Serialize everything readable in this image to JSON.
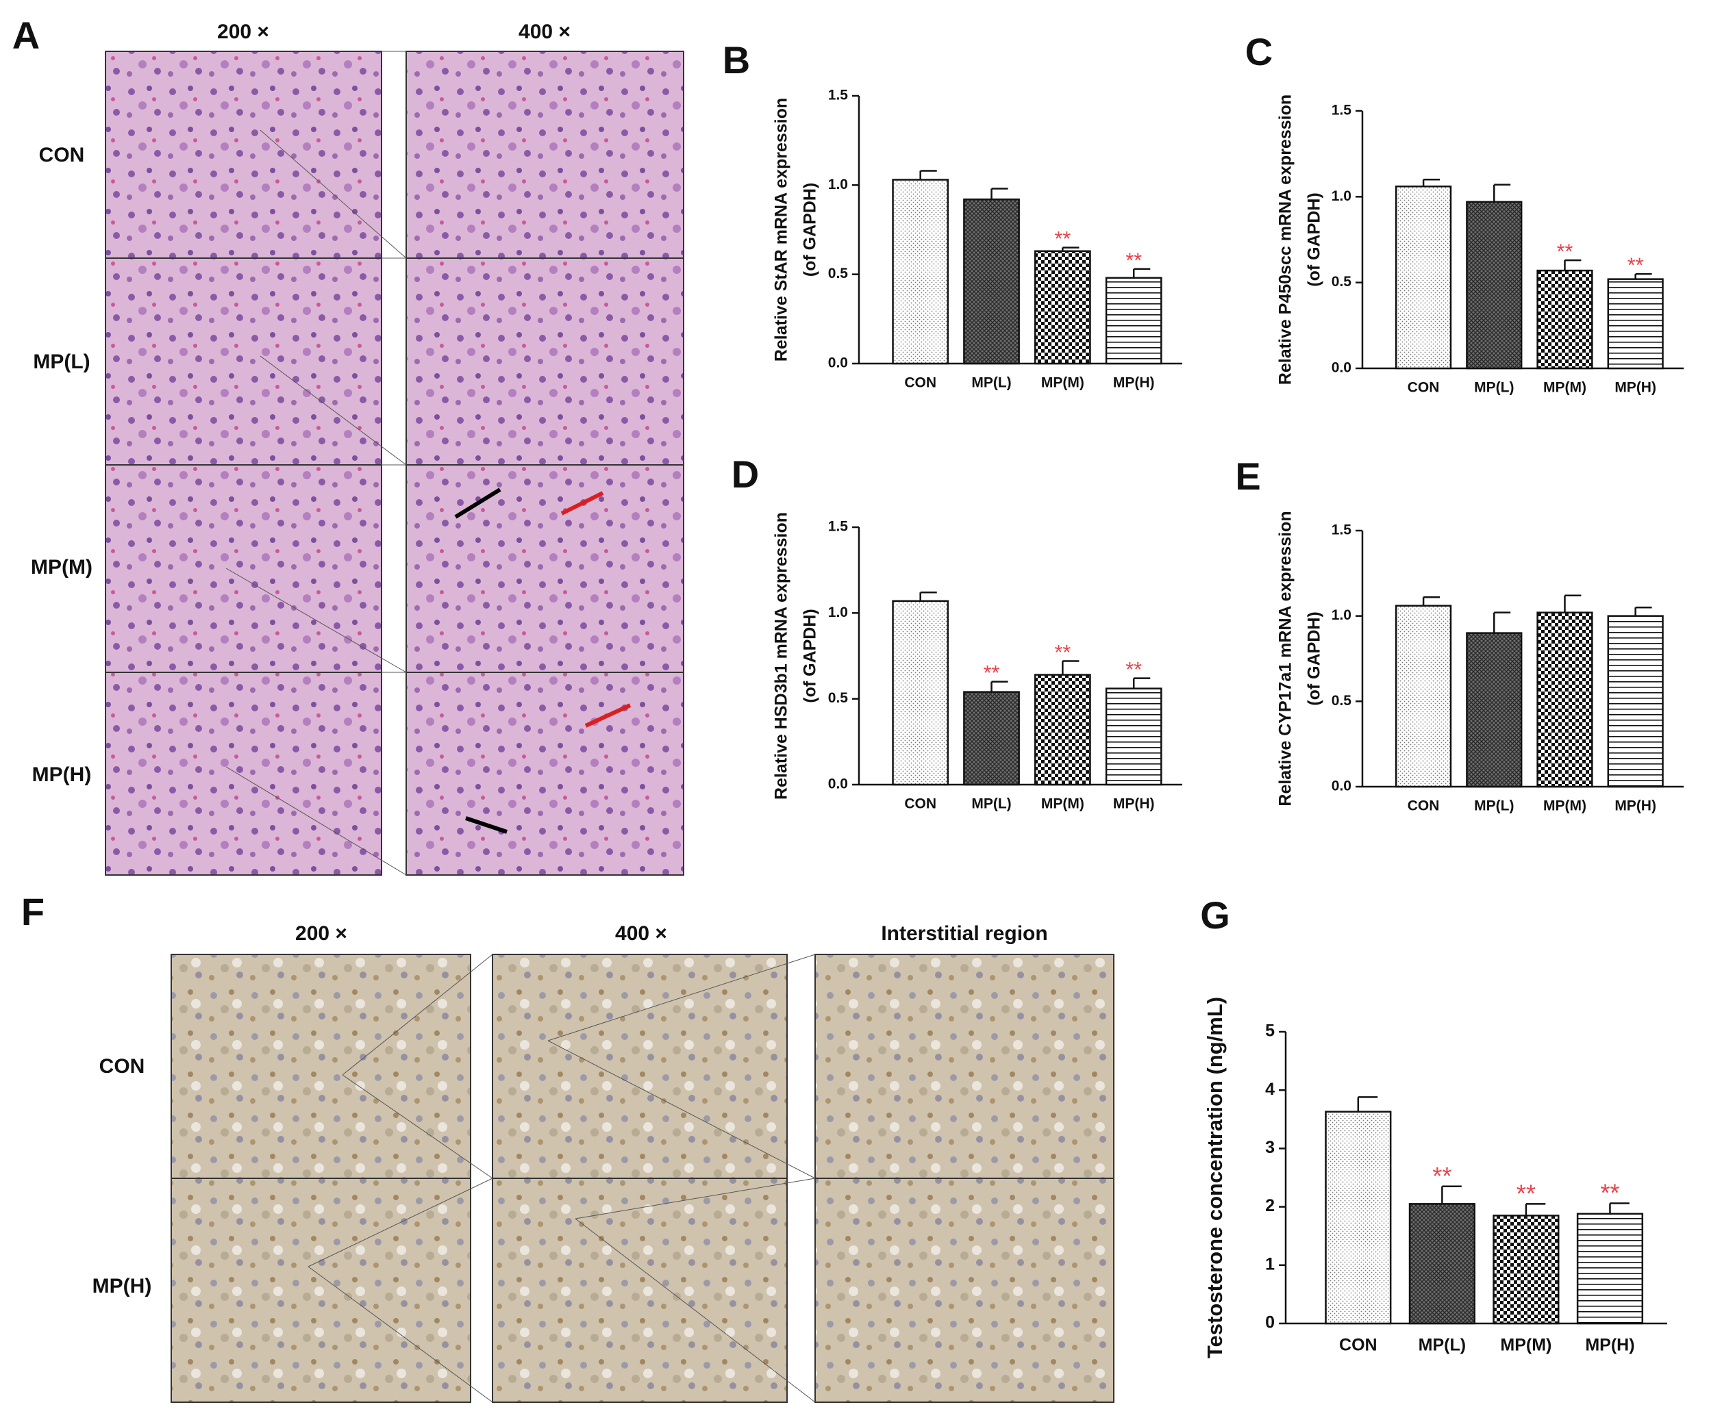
{
  "panel_a": {
    "label": "A",
    "columns": [
      "200 ×",
      "400 ×"
    ],
    "rows": [
      "CON",
      "MP(L)",
      "MP(M)",
      "MP(H)"
    ]
  },
  "panel_f": {
    "label": "F",
    "columns": [
      "200 ×",
      "400 ×",
      "Interstitial region"
    ],
    "rows": [
      "CON",
      "MP(H)"
    ]
  },
  "chart_data": [
    {
      "type": "bar",
      "panel_label": "B",
      "y_label": [
        "Relative StAR mRNA expression",
        "(of GAPDH)"
      ],
      "categories": [
        "CON",
        "MP(L)",
        "MP(M)",
        "MP(H)"
      ],
      "values": [
        1.03,
        0.92,
        0.63,
        0.48
      ],
      "errors": [
        0.05,
        0.06,
        0.02,
        0.05
      ],
      "annotations": [
        null,
        null,
        "**",
        "**"
      ],
      "annotation_color": "#e8434b",
      "ylim": [
        0,
        1.5
      ],
      "yticks": [
        {
          "value": 0,
          "label": "0.0"
        },
        0.5,
        {
          "value": 1,
          "label": "1.0"
        },
        1.5
      ]
    },
    {
      "type": "bar",
      "panel_label": "C",
      "y_label": [
        "Relative P450scc mRNA expression",
        "(of GAPDH)"
      ],
      "categories": [
        "CON",
        "MP(L)",
        "MP(M)",
        "MP(H)"
      ],
      "values": [
        1.06,
        0.97,
        0.57,
        0.52
      ],
      "errors": [
        0.04,
        0.1,
        0.06,
        0.03
      ],
      "annotations": [
        null,
        null,
        "**",
        "**"
      ],
      "annotation_color": "#e8434b",
      "ylim": [
        0,
        1.5
      ],
      "yticks": [
        {
          "value": 0,
          "label": "0.0"
        },
        0.5,
        {
          "value": 1,
          "label": "1.0"
        },
        1.5
      ]
    },
    {
      "type": "bar",
      "panel_label": "D",
      "y_label": [
        "Relative HSD3b1 mRNA expression",
        "(of GAPDH)"
      ],
      "categories": [
        "CON",
        "MP(L)",
        "MP(M)",
        "MP(H)"
      ],
      "values": [
        1.07,
        0.54,
        0.64,
        0.56
      ],
      "errors": [
        0.05,
        0.06,
        0.08,
        0.06
      ],
      "annotations": [
        null,
        "**",
        "**",
        "**"
      ],
      "annotation_color": "#e8434b",
      "ylim": [
        0,
        1.5
      ],
      "yticks": [
        {
          "value": 0,
          "label": "0.0"
        },
        0.5,
        {
          "value": 1,
          "label": "1.0"
        },
        1.5
      ]
    },
    {
      "type": "bar",
      "panel_label": "E",
      "y_label": [
        "Relative CYP17a1 mRNA expression",
        "(of GAPDH)"
      ],
      "categories": [
        "CON",
        "MP(L)",
        "MP(M)",
        "MP(H)"
      ],
      "values": [
        1.06,
        0.9,
        1.02,
        1.0
      ],
      "errors": [
        0.05,
        0.12,
        0.1,
        0.05
      ],
      "annotations": [
        null,
        null,
        null,
        null
      ],
      "annotation_color": "#e8434b",
      "ylim": [
        0,
        1.5
      ],
      "yticks": [
        {
          "value": 0,
          "label": "0.0"
        },
        0.5,
        {
          "value": 1,
          "label": "1.0"
        },
        1.5
      ]
    },
    {
      "type": "bar",
      "panel_label": "G",
      "y_label": [
        "Testosterone concentration (ng/mL)"
      ],
      "categories": [
        "CON",
        "MP(L)",
        "MP(M)",
        "MP(H)"
      ],
      "values": [
        3.63,
        2.05,
        1.85,
        1.88
      ],
      "errors": [
        0.25,
        0.3,
        0.2,
        0.18
      ],
      "annotations": [
        null,
        "**",
        "**",
        "**"
      ],
      "annotation_color": "#e8434b",
      "ylim": [
        0,
        5
      ],
      "yticks": [
        0,
        1,
        2,
        3,
        4,
        5
      ]
    }
  ]
}
